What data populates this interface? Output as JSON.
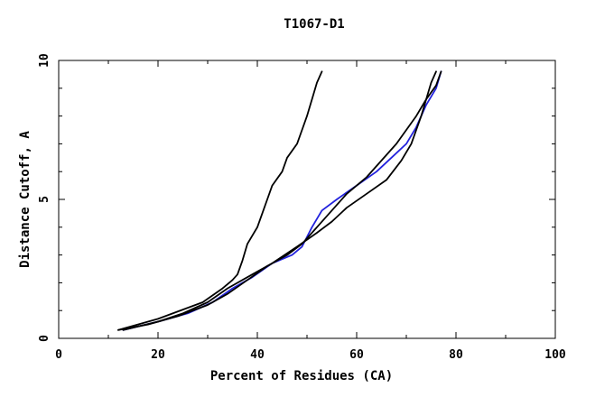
{
  "chart_data": {
    "type": "line",
    "title": "T1067-D1",
    "xlabel": "Percent of Residues (CA)",
    "ylabel": "Distance Cutoff, A",
    "xlim": [
      0,
      100
    ],
    "ylim": [
      0,
      10
    ],
    "x_ticks": [
      "0",
      "20",
      "40",
      "60",
      "80",
      "100"
    ],
    "y_ticks": [
      "0",
      "5",
      "10"
    ],
    "grid": false,
    "colors": {
      "orange": "#ff8c00",
      "black": "#000000",
      "blue": "#2222dd"
    },
    "series": [
      {
        "color": "black",
        "x": [
          12,
          20,
          29,
          33,
          35,
          36,
          37,
          38,
          40,
          41,
          42,
          43,
          45,
          46,
          48,
          49,
          50,
          51,
          52,
          53
        ],
        "y": [
          0.3,
          0.7,
          1.3,
          1.8,
          2.1,
          2.3,
          2.8,
          3.4,
          4.0,
          4.5,
          5.0,
          5.5,
          6.0,
          6.5,
          7.0,
          7.5,
          8.0,
          8.6,
          9.2,
          9.6
        ]
      },
      {
        "color": "black",
        "x": [
          13,
          20,
          25,
          30,
          34,
          38,
          43,
          48,
          52,
          55,
          58,
          62,
          66,
          69,
          71,
          72,
          73,
          74,
          75,
          76
        ],
        "y": [
          0.3,
          0.6,
          0.9,
          1.3,
          1.8,
          2.2,
          2.7,
          3.3,
          3.8,
          4.2,
          4.7,
          5.2,
          5.7,
          6.4,
          7.0,
          7.5,
          8.0,
          8.6,
          9.2,
          9.6
        ]
      },
      {
        "color": "black",
        "x": [
          12,
          18,
          24,
          30,
          34,
          38,
          42,
          46,
          49,
          52,
          55,
          58,
          62,
          65,
          68,
          70,
          72,
          74,
          76,
          77
        ],
        "y": [
          0.3,
          0.5,
          0.8,
          1.2,
          1.6,
          2.1,
          2.6,
          3.0,
          3.4,
          4.0,
          4.6,
          5.2,
          5.8,
          6.4,
          7.0,
          7.5,
          8.0,
          8.6,
          9.1,
          9.6
        ]
      },
      {
        "color": "blue",
        "x": [
          13,
          20,
          26,
          31,
          35,
          39,
          43,
          47,
          49,
          51,
          53,
          56,
          60,
          64,
          67,
          70,
          72,
          74,
          76,
          77
        ],
        "y": [
          0.3,
          0.6,
          0.9,
          1.3,
          1.8,
          2.2,
          2.7,
          3.0,
          3.3,
          4.0,
          4.6,
          5.0,
          5.5,
          6.0,
          6.5,
          7.0,
          7.6,
          8.4,
          9.0,
          9.6
        ]
      }
    ]
  }
}
